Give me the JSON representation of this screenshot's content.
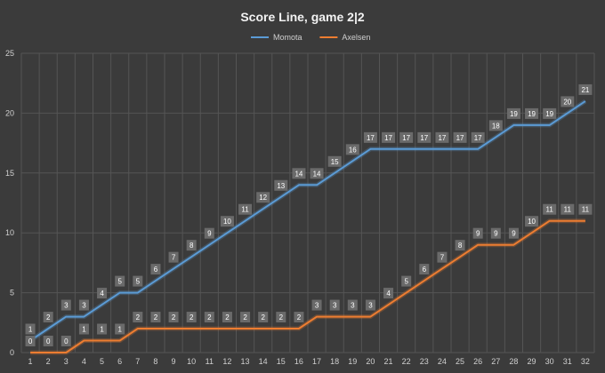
{
  "chart_data": {
    "type": "line",
    "title": "Score Line, game 2|2",
    "xlabel": "",
    "ylabel": "",
    "ylim": [
      0,
      25
    ],
    "yticks": [
      "0",
      "5",
      "10",
      "15",
      "20",
      "25"
    ],
    "grid": true,
    "legend_position": "top",
    "x": [
      1,
      2,
      3,
      4,
      5,
      6,
      7,
      8,
      9,
      10,
      11,
      12,
      13,
      14,
      15,
      16,
      17,
      18,
      19,
      20,
      21,
      22,
      23,
      24,
      25,
      26,
      27,
      28,
      29,
      30,
      31,
      32
    ],
    "series": [
      {
        "name": "Momota",
        "color": "#5b9bd5",
        "values": [
          1,
          2,
          3,
          3,
          4,
          5,
          5,
          6,
          7,
          8,
          9,
          10,
          11,
          12,
          13,
          14,
          14,
          15,
          16,
          17,
          17,
          17,
          17,
          17,
          17,
          17,
          18,
          19,
          19,
          19,
          20,
          21
        ]
      },
      {
        "name": "Axelsen",
        "color": "#ed7d31",
        "values": [
          0,
          0,
          0,
          1,
          1,
          1,
          2,
          2,
          2,
          2,
          2,
          2,
          2,
          2,
          2,
          2,
          3,
          3,
          3,
          3,
          4,
          5,
          6,
          7,
          8,
          9,
          9,
          9,
          10,
          11,
          11,
          11
        ]
      }
    ]
  },
  "colors": {
    "background": "#3b3b3b",
    "grid": "#555555",
    "axis_text": "#d0d0d0",
    "label_box": "#6a6a6a"
  }
}
